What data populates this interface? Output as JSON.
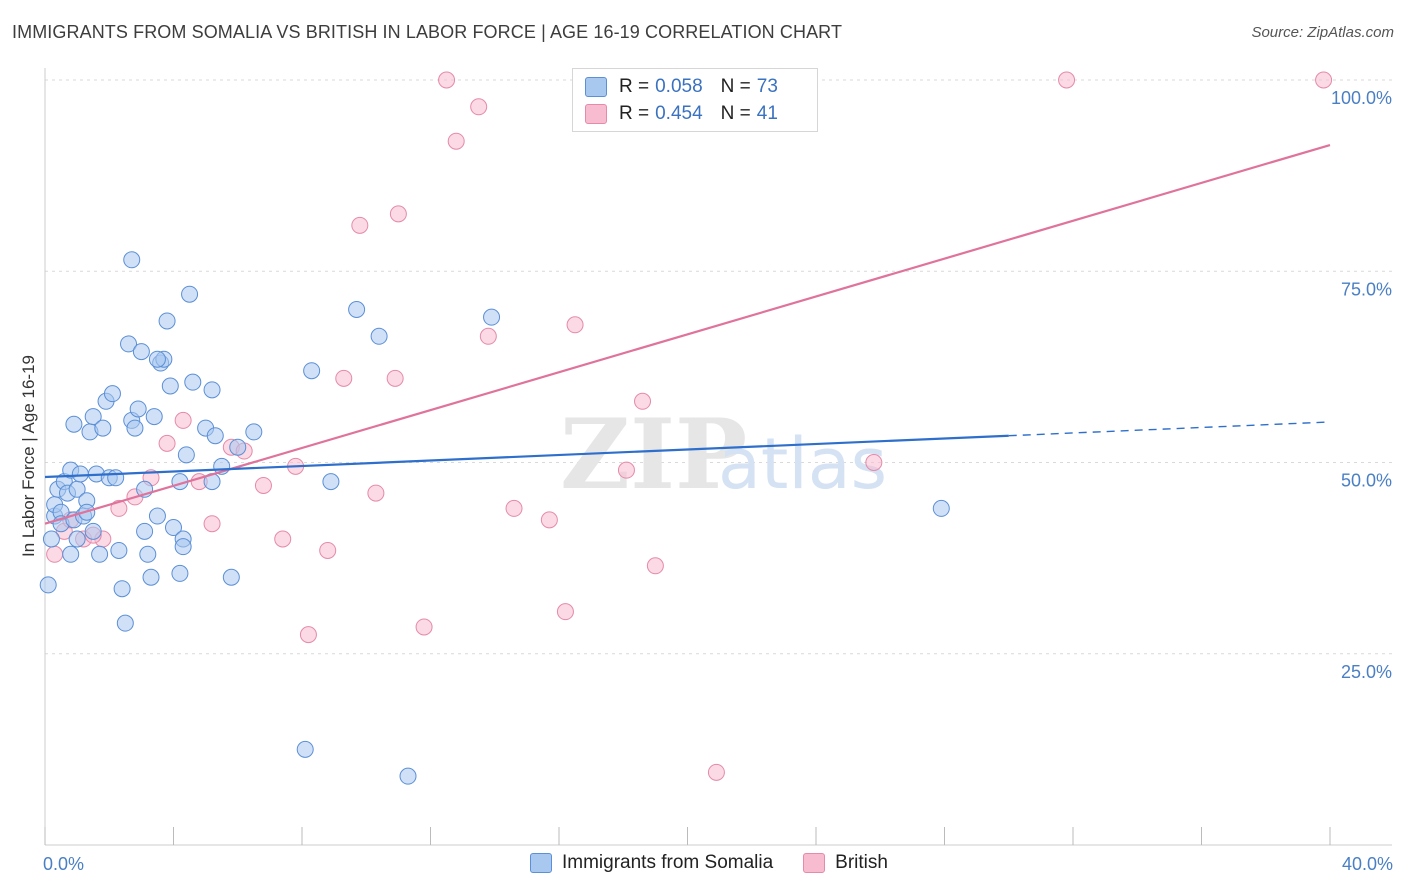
{
  "header": {
    "title": "IMMIGRANTS FROM SOMALIA VS BRITISH IN LABOR FORCE | AGE 16-19 CORRELATION CHART",
    "source": "Source: ZipAtlas.com"
  },
  "legend": {
    "rows": [
      {
        "r_label": "R = ",
        "r_value": "0.058",
        "n_label": "N = ",
        "n_value": "73"
      },
      {
        "r_label": "R = ",
        "r_value": "0.454",
        "n_label": "N = ",
        "n_value": "41"
      }
    ]
  },
  "watermark": {
    "zip": "ZIP",
    "atlas": "atlas"
  },
  "colors": {
    "somalia_fill": "#a9c8f0",
    "somalia_stroke": "#5b8fd6",
    "somalia_line": "#2e6fcc",
    "british_fill": "#f7bcd0",
    "british_stroke": "#e58aa8",
    "british_line": "#e0739b",
    "tick_text": "#4a7fc4",
    "grid": "#d9d9d9"
  },
  "chart_data": {
    "type": "scatter",
    "title": "IMMIGRANTS FROM SOMALIA VS BRITISH IN LABOR FORCE | AGE 16-19 CORRELATION CHART",
    "xlabel": "",
    "ylabel": "In Labor Force | Age 16-19",
    "xlim": [
      0,
      40
    ],
    "ylim": [
      0,
      105
    ],
    "x_tick_labels": [
      "0.0%",
      "40.0%"
    ],
    "y_ticks": [
      25,
      50,
      75,
      100
    ],
    "y_tick_labels": [
      "25.0%",
      "50.0%",
      "75.0%",
      "100.0%"
    ],
    "series": [
      {
        "name": "Immigrants from Somalia",
        "R": 0.058,
        "N": 73,
        "trend": {
          "x": [
            0,
            30
          ],
          "y": [
            48.1,
            53.5
          ]
        },
        "trend_dashed": {
          "x": [
            30,
            40
          ],
          "y": [
            53.5,
            55.3
          ]
        },
        "points": [
          [
            0.1,
            34.0
          ],
          [
            0.2,
            40.0
          ],
          [
            0.3,
            43.0
          ],
          [
            0.3,
            44.5
          ],
          [
            0.4,
            46.5
          ],
          [
            0.5,
            43.5
          ],
          [
            0.5,
            42.0
          ],
          [
            0.6,
            47.5
          ],
          [
            0.7,
            46.0
          ],
          [
            0.8,
            38.0
          ],
          [
            0.8,
            49.0
          ],
          [
            0.9,
            55.0
          ],
          [
            0.9,
            42.5
          ],
          [
            1.0,
            46.5
          ],
          [
            1.0,
            40.0
          ],
          [
            1.1,
            48.5
          ],
          [
            1.2,
            43.0
          ],
          [
            1.3,
            45.0
          ],
          [
            1.3,
            43.5
          ],
          [
            1.4,
            54.0
          ],
          [
            1.5,
            41.0
          ],
          [
            1.5,
            56.0
          ],
          [
            1.6,
            48.5
          ],
          [
            1.7,
            38.0
          ],
          [
            1.8,
            54.5
          ],
          [
            1.9,
            58.0
          ],
          [
            2.0,
            48.0
          ],
          [
            2.1,
            59.0
          ],
          [
            2.2,
            48.0
          ],
          [
            2.3,
            38.5
          ],
          [
            2.4,
            33.5
          ],
          [
            2.5,
            29.0
          ],
          [
            2.6,
            65.5
          ],
          [
            2.7,
            55.5
          ],
          [
            2.7,
            76.5
          ],
          [
            2.8,
            54.5
          ],
          [
            2.9,
            57.0
          ],
          [
            3.0,
            64.5
          ],
          [
            3.1,
            41.0
          ],
          [
            3.1,
            46.5
          ],
          [
            3.2,
            38.0
          ],
          [
            3.3,
            35.0
          ],
          [
            3.4,
            56.0
          ],
          [
            3.5,
            43.0
          ],
          [
            3.6,
            63.0
          ],
          [
            3.7,
            63.5
          ],
          [
            3.8,
            68.5
          ],
          [
            3.9,
            60.0
          ],
          [
            4.0,
            41.5
          ],
          [
            4.2,
            35.5
          ],
          [
            4.2,
            47.5
          ],
          [
            4.3,
            40.0
          ],
          [
            4.3,
            39.0
          ],
          [
            4.4,
            51.0
          ],
          [
            4.5,
            72.0
          ],
          [
            4.6,
            60.5
          ],
          [
            5.0,
            54.5
          ],
          [
            5.3,
            53.5
          ],
          [
            5.2,
            47.5
          ],
          [
            5.2,
            59.5
          ],
          [
            5.5,
            49.5
          ],
          [
            5.8,
            35.0
          ],
          [
            6.0,
            52.0
          ],
          [
            6.5,
            54.0
          ],
          [
            8.1,
            12.5
          ],
          [
            8.3,
            62.0
          ],
          [
            8.9,
            47.5
          ],
          [
            9.7,
            70.0
          ],
          [
            10.4,
            66.5
          ],
          [
            11.3,
            9.0
          ],
          [
            13.9,
            69.0
          ],
          [
            27.9,
            44.0
          ],
          [
            3.5,
            63.5
          ]
        ]
      },
      {
        "name": "British",
        "R": 0.454,
        "N": 41,
        "trend": {
          "x": [
            0,
            40
          ],
          "y": [
            42.0,
            91.5
          ]
        },
        "points": [
          [
            0.3,
            38.0
          ],
          [
            0.6,
            41.0
          ],
          [
            0.8,
            42.5
          ],
          [
            1.2,
            40.0
          ],
          [
            1.8,
            40.0
          ],
          [
            2.3,
            44.0
          ],
          [
            2.8,
            45.5
          ],
          [
            3.3,
            48.0
          ],
          [
            3.8,
            52.5
          ],
          [
            4.3,
            55.5
          ],
          [
            4.8,
            47.5
          ],
          [
            5.2,
            42.0
          ],
          [
            5.8,
            52.0
          ],
          [
            6.2,
            51.5
          ],
          [
            6.8,
            47.0
          ],
          [
            7.4,
            40.0
          ],
          [
            7.8,
            49.5
          ],
          [
            8.2,
            27.5
          ],
          [
            8.8,
            38.5
          ],
          [
            9.3,
            61.0
          ],
          [
            9.8,
            81.0
          ],
          [
            10.3,
            46.0
          ],
          [
            10.9,
            61.0
          ],
          [
            11.0,
            82.5
          ],
          [
            11.8,
            28.5
          ],
          [
            12.5,
            100.0
          ],
          [
            12.8,
            92.0
          ],
          [
            13.5,
            96.5
          ],
          [
            13.8,
            66.5
          ],
          [
            14.6,
            44.0
          ],
          [
            15.7,
            42.5
          ],
          [
            16.2,
            30.5
          ],
          [
            16.5,
            68.0
          ],
          [
            18.1,
            49.0
          ],
          [
            18.6,
            58.0
          ],
          [
            19.0,
            36.5
          ],
          [
            20.9,
            9.5
          ],
          [
            25.8,
            50.0
          ],
          [
            31.8,
            100.0
          ],
          [
            39.8,
            100.0
          ],
          [
            1.5,
            40.5
          ]
        ]
      }
    ],
    "legend": [
      "Immigrants from Somalia",
      "British"
    ]
  }
}
